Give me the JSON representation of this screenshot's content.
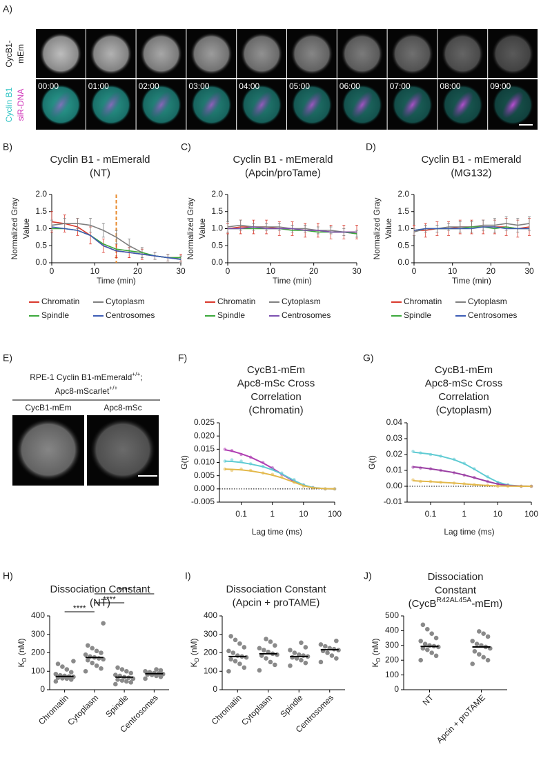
{
  "figure": {
    "panel_a": {
      "label": "A)",
      "row1_label_lines": [
        "CycB1-",
        "mEm"
      ],
      "row2_label_lines": [
        "Cyclin B1",
        "siR-DNA"
      ],
      "times": [
        "00:00",
        "01:00",
        "02:00",
        "03:00",
        "04:00",
        "05:00",
        "06:00",
        "07:00",
        "08:00",
        "09:00"
      ]
    },
    "panel_e": {
      "label": "E)",
      "title_lines": [
        [
          "RPE-1 Cyclin B1-mEmerald",
          "+/+",
          ";"
        ],
        [
          "Apc8-mScarlet",
          "+/+"
        ]
      ],
      "image_labels": [
        "CycB1-mEm",
        "Apc8-mSc"
      ]
    }
  },
  "chart_data": [
    {
      "panel_label": "B)",
      "type": "line",
      "title_lines": [
        "Cyclin B1 - mEmerald",
        "(NT)"
      ],
      "x": [
        0,
        3,
        6,
        9,
        12,
        15,
        18,
        21,
        24,
        27,
        30
      ],
      "xlim": [
        0,
        30
      ],
      "xticks": [
        0,
        10,
        20,
        30
      ],
      "xlabel": "Time (min)",
      "ylim": [
        0,
        2
      ],
      "yticks": [
        {
          "value": 0,
          "label": "0.0"
        },
        0.5,
        {
          "value": 1,
          "label": "1.0"
        },
        1.5,
        {
          "value": 2,
          "label": "2.0"
        }
      ],
      "ylabel_lines": [
        "Normalized Gray",
        "Value"
      ],
      "legend": "bottom",
      "vline": {
        "x": 15,
        "color": "#e8892b"
      },
      "series": [
        {
          "name": "Chromatin",
          "color": "#d9372b",
          "values": [
            1.2,
            1.15,
            1.05,
            0.8,
            0.5,
            0.35,
            0.3,
            0.25,
            0.2,
            0.15,
            0.15
          ],
          "errors": [
            0.3,
            0.25,
            0.25,
            0.25,
            0.2,
            0.2,
            0.15,
            0.15,
            0.1,
            0.1,
            0.1
          ]
        },
        {
          "name": "Cytoplasm",
          "color": "#7f7f7f",
          "values": [
            1.1,
            1.15,
            1.15,
            1.1,
            0.95,
            0.75,
            0.5,
            0.3,
            0.2,
            0.15,
            0.1
          ],
          "errors": [
            0.15,
            0.15,
            0.15,
            0.2,
            0.2,
            0.2,
            0.2,
            0.15,
            0.1,
            0.1,
            0.1
          ]
        },
        {
          "name": "Spindle",
          "color": "#3aa83a",
          "values": [
            1.0,
            1.0,
            0.95,
            0.8,
            0.55,
            0.4,
            0.35,
            0.3,
            0.2,
            0.15,
            0.15
          ]
        },
        {
          "name": "Centrosomes",
          "color": "#3b5bb5",
          "values": [
            1.05,
            1.0,
            0.95,
            0.8,
            0.5,
            0.35,
            0.3,
            0.25,
            0.2,
            0.15,
            0.1
          ]
        }
      ]
    },
    {
      "panel_label": "C)",
      "type": "line",
      "title_lines": [
        "Cyclin B1 - mEmerald",
        "(Apcin/proTame)"
      ],
      "x": [
        0,
        3,
        6,
        9,
        12,
        15,
        18,
        21,
        24,
        27,
        30
      ],
      "xlim": [
        0,
        30
      ],
      "xticks": [
        0,
        10,
        20,
        30
      ],
      "xlabel": "Time (min)",
      "ylim": [
        0,
        2
      ],
      "yticks": [
        {
          "value": 0,
          "label": "0.0"
        },
        0.5,
        {
          "value": 1,
          "label": "1.0"
        },
        1.5,
        {
          "value": 2,
          "label": "2.0"
        }
      ],
      "ylabel_lines": [
        "Normalized Gray",
        "Value"
      ],
      "legend": "bottom",
      "series": [
        {
          "name": "Chromatin",
          "color": "#d9372b",
          "values": [
            1.0,
            1.05,
            1.05,
            1.05,
            1.0,
            1.0,
            0.95,
            0.95,
            0.9,
            0.9,
            0.9
          ],
          "errors": [
            0.15,
            0.2,
            0.2,
            0.2,
            0.2,
            0.2,
            0.2,
            0.2,
            0.2,
            0.2,
            0.2
          ]
        },
        {
          "name": "Cytoplasm",
          "color": "#7f7f7f",
          "values": [
            1.05,
            1.1,
            1.05,
            1.05,
            1.05,
            1.0,
            1.0,
            0.95,
            0.95,
            0.9,
            0.85
          ],
          "errors": [
            0.15,
            0.15,
            0.1,
            0.1,
            0.1,
            0.1,
            0.1,
            0.1,
            0.1,
            0.1,
            0.1
          ]
        },
        {
          "name": "Spindle",
          "color": "#3aa83a",
          "values": [
            1.0,
            1.0,
            1.0,
            1.0,
            1.0,
            0.95,
            0.95,
            0.9,
            0.9,
            0.9,
            0.85
          ]
        },
        {
          "name": "Centrosomes",
          "color": "#7b4fb0",
          "values": [
            1.0,
            1.0,
            1.05,
            1.0,
            1.0,
            1.0,
            0.95,
            0.95,
            0.9,
            0.9,
            0.9
          ]
        }
      ]
    },
    {
      "panel_label": "D)",
      "type": "line",
      "title_lines": [
        "Cyclin B1 - mEmerald",
        "(MG132)"
      ],
      "x": [
        0,
        3,
        6,
        9,
        12,
        15,
        18,
        21,
        24,
        27,
        30
      ],
      "xlim": [
        0,
        30
      ],
      "xticks": [
        0,
        10,
        20,
        30
      ],
      "xlabel": "Time (min)",
      "ylim": [
        0,
        2
      ],
      "yticks": [
        {
          "value": 0,
          "label": "0.0"
        },
        0.5,
        {
          "value": 1,
          "label": "1.0"
        },
        1.5,
        {
          "value": 2,
          "label": "2.0"
        }
      ],
      "ylabel_lines": [
        "Normalized Gray",
        "Value"
      ],
      "legend": "bottom",
      "series": [
        {
          "name": "Chromatin",
          "color": "#d9372b",
          "values": [
            0.95,
            0.95,
            1.0,
            1.0,
            1.05,
            1.05,
            1.05,
            1.05,
            1.05,
            1.0,
            1.05
          ],
          "errors": [
            0.15,
            0.2,
            0.2,
            0.2,
            0.2,
            0.2,
            0.2,
            0.2,
            0.25,
            0.25,
            0.25
          ]
        },
        {
          "name": "Cytoplasm",
          "color": "#7f7f7f",
          "values": [
            0.9,
            1.0,
            1.0,
            1.05,
            1.05,
            1.05,
            1.1,
            1.1,
            1.15,
            1.1,
            1.15
          ],
          "errors": [
            0.1,
            0.1,
            0.1,
            0.1,
            0.15,
            0.15,
            0.15,
            0.2,
            0.2,
            0.2,
            0.2
          ]
        },
        {
          "name": "Spindle",
          "color": "#3aa83a",
          "values": [
            0.95,
            1.0,
            1.0,
            1.0,
            1.0,
            1.05,
            1.05,
            1.0,
            1.05,
            1.0,
            1.0
          ]
        },
        {
          "name": "Centrosomes",
          "color": "#3b5bb5",
          "values": [
            0.95,
            1.0,
            1.0,
            1.0,
            1.0,
            1.0,
            1.05,
            1.05,
            1.0,
            1.0,
            1.0
          ]
        }
      ]
    },
    {
      "panel_label": "F)",
      "type": "scatter",
      "title_lines": [
        "CycB1-mEm",
        "Apc8-mSc Cross",
        "Correlation",
        "(Chromatin)"
      ],
      "x": [
        0.03,
        0.05,
        0.1,
        0.2,
        0.5,
        1,
        2,
        5,
        10,
        20,
        50,
        100
      ],
      "xscale": "log",
      "xlim": [
        0.02,
        100
      ],
      "xticks": [
        0.1,
        1,
        10,
        100
      ],
      "xlabel": "Lag time (ms)",
      "ylim": [
        -0.005,
        0.025
      ],
      "yticks": [
        -0.005,
        {
          "value": 0,
          "label": "0.000"
        },
        0.005,
        {
          "value": 0.01,
          "label": "0.010"
        },
        0.015,
        {
          "value": 0.02,
          "label": "0.020"
        },
        0.025
      ],
      "ylabel": "G(t)",
      "hline": 0,
      "series": [
        {
          "color": "#b03fb3",
          "values": [
            0.015,
            0.0145,
            0.013,
            0.012,
            0.01,
            0.008,
            0.0055,
            0.003,
            0.0015,
            0.0005,
            0,
            0
          ],
          "fit": [
            0.0148,
            0.0143,
            0.0133,
            0.012,
            0.0098,
            0.0078,
            0.0056,
            0.0028,
            0.0013,
            0.0004,
            0.0001,
            0
          ]
        },
        {
          "color": "#5fcbd3",
          "values": [
            0.0105,
            0.011,
            0.0105,
            0.0095,
            0.0085,
            0.0075,
            0.006,
            0.0035,
            0.0015,
            0.0005,
            0,
            0
          ],
          "fit": [
            0.0105,
            0.0104,
            0.01,
            0.0094,
            0.0084,
            0.0072,
            0.0057,
            0.0032,
            0.0015,
            0.0005,
            0.0001,
            0
          ]
        },
        {
          "color": "#e3b84a",
          "values": [
            0.0075,
            0.007,
            0.0075,
            0.007,
            0.006,
            0.0055,
            0.0045,
            0.0025,
            0.001,
            0.0003,
            0,
            0
          ],
          "fit": [
            0.0075,
            0.0074,
            0.0072,
            0.0068,
            0.006,
            0.0052,
            0.0042,
            0.0025,
            0.0012,
            0.0004,
            0.0001,
            0
          ]
        }
      ]
    },
    {
      "panel_label": "G)",
      "type": "scatter",
      "title_lines": [
        "CycB1-mEm",
        "Apc8-mSc Cross",
        "Correlation",
        "(Cytoplasm)"
      ],
      "x": [
        0.03,
        0.05,
        0.1,
        0.2,
        0.5,
        1,
        2,
        5,
        10,
        20,
        50,
        100
      ],
      "xscale": "log",
      "xlim": [
        0.02,
        100
      ],
      "xticks": [
        0.1,
        1,
        10,
        100
      ],
      "xlabel": "Lag time (ms)",
      "ylim": [
        -0.01,
        0.04
      ],
      "yticks": [
        -0.01,
        {
          "value": 0,
          "label": "0.00"
        },
        0.01,
        0.02,
        0.03,
        0.04
      ],
      "ylabel": "G(t)",
      "hline": 0,
      "series": [
        {
          "color": "#5fcbd3",
          "values": [
            0.022,
            0.021,
            0.02,
            0.019,
            0.017,
            0.0145,
            0.011,
            0.006,
            0.0025,
            0.001,
            0,
            0
          ],
          "fit": [
            0.0215,
            0.021,
            0.0202,
            0.019,
            0.0168,
            0.0142,
            0.0108,
            0.0058,
            0.0026,
            0.0008,
            0.0001,
            0
          ]
        },
        {
          "color": "#9a3ea3",
          "values": [
            0.012,
            0.0115,
            0.011,
            0.01,
            0.0085,
            0.007,
            0.0055,
            0.003,
            0.0015,
            0.0005,
            0,
            0
          ],
          "fit": [
            0.0122,
            0.0118,
            0.011,
            0.01,
            0.0086,
            0.0071,
            0.0054,
            0.003,
            0.0014,
            0.0005,
            0.0001,
            0
          ]
        },
        {
          "color": "#e3b84a",
          "values": [
            0.004,
            0.003,
            0.003,
            0.0025,
            0.002,
            0.0015,
            0.001,
            0.0005,
            0,
            0,
            0,
            0
          ],
          "fit": [
            0.0035,
            0.0032,
            0.0029,
            0.0025,
            0.002,
            0.0015,
            0.001,
            0.0005,
            0.0002,
            0.0001,
            0,
            0
          ]
        }
      ]
    },
    {
      "panel_label": "H)",
      "type": "strip",
      "title_lines": [
        "Dissociation Constant",
        "(NT)"
      ],
      "categories": [
        "Chromatin",
        "Cytoplasm",
        "Spindle",
        "Centrosomes"
      ],
      "ylim": [
        0,
        400
      ],
      "yticks": [
        0,
        100,
        200,
        300,
        400
      ],
      "ylabel": [
        "K",
        "D",
        " (nM)"
      ],
      "point_color": "#8a8a8a",
      "median_color": "#000000",
      "values": [
        [
          45,
          55,
          60,
          62,
          65,
          70,
          72,
          75,
          78,
          85,
          95,
          110,
          125,
          140,
          155
        ],
        [
          100,
          115,
          130,
          145,
          160,
          165,
          170,
          175,
          180,
          190,
          200,
          210,
          225,
          240,
          360
        ],
        [
          30,
          40,
          45,
          50,
          55,
          60,
          65,
          68,
          75,
          80,
          90,
          100,
          110,
          120
        ],
        [
          60,
          70,
          75,
          80,
          82,
          85,
          88,
          90,
          95,
          100,
          105,
          110
        ]
      ],
      "medians": [
        72,
        175,
        68,
        87
      ],
      "significance": [
        {
          "text": "****",
          "between": [
            "Chromatin",
            "Cytoplasm"
          ]
        },
        {
          "text": "****",
          "between": [
            "Cytoplasm",
            "Spindle"
          ]
        },
        {
          "text": "****",
          "between": [
            "Cytoplasm",
            "Centrosomes"
          ]
        }
      ]
    },
    {
      "panel_label": "I)",
      "type": "strip",
      "title_lines": [
        "Dissociation Constant",
        "(Apcin + proTAME)"
      ],
      "categories": [
        "Chromatin",
        "Cytoplasm",
        "Spindle",
        "Centrosomes"
      ],
      "ylim": [
        0,
        400
      ],
      "yticks": [
        0,
        100,
        200,
        300,
        400
      ],
      "ylabel": [
        "K",
        "D",
        " (nM)"
      ],
      "point_color": "#8a8a8a",
      "median_color": "#000000",
      "values": [
        [
          100,
          120,
          140,
          155,
          165,
          175,
          180,
          185,
          200,
          210,
          230,
          250,
          270,
          290
        ],
        [
          105,
          135,
          150,
          170,
          185,
          190,
          195,
          205,
          215,
          225,
          240,
          260,
          275
        ],
        [
          130,
          145,
          160,
          170,
          175,
          180,
          185,
          190,
          200,
          215,
          230,
          255
        ],
        [
          150,
          170,
          185,
          200,
          210,
          215,
          220,
          225,
          235,
          245,
          265
        ]
      ],
      "medians": [
        180,
        195,
        180,
        217
      ]
    },
    {
      "panel_label": "J)",
      "type": "strip",
      "title_lines": [
        "Dissociation",
        "Constant",
        [
          "(CycB",
          "R42AL45A",
          "-mEm)"
        ]
      ],
      "categories": [
        "NT",
        "Apcin + proTAME"
      ],
      "ylim": [
        0,
        500
      ],
      "yticks": [
        0,
        100,
        200,
        300,
        400,
        500
      ],
      "ylabel": [
        "K",
        "D",
        " (nM)"
      ],
      "point_color": "#8a8a8a",
      "median_color": "#000000",
      "values": [
        [
          200,
          230,
          250,
          270,
          280,
          290,
          295,
          300,
          310,
          330,
          350,
          380,
          410,
          440
        ],
        [
          175,
          200,
          220,
          240,
          260,
          280,
          290,
          300,
          310,
          330,
          360,
          380,
          395
        ]
      ],
      "medians": [
        293,
        290
      ]
    }
  ]
}
